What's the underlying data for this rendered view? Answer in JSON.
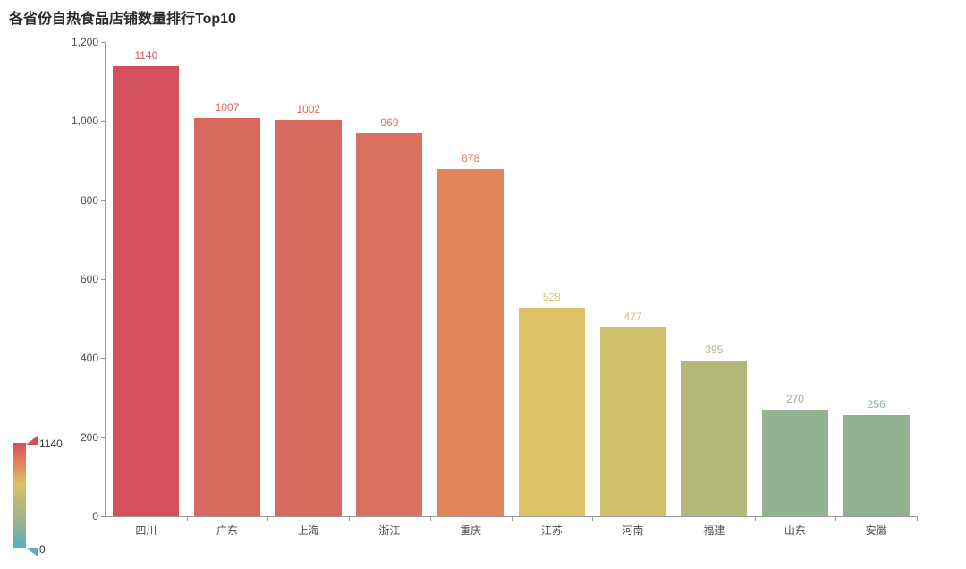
{
  "chart_data": {
    "type": "bar",
    "title": "各省份自热食品店铺数量排行Top10",
    "categories": [
      "四川",
      "广东",
      "上海",
      "浙江",
      "重庆",
      "江苏",
      "河南",
      "福建",
      "山东",
      "安徽"
    ],
    "values": [
      1140,
      1007,
      1002,
      969,
      878,
      528,
      477,
      395,
      270,
      256
    ],
    "bar_colors": [
      "#d4505c",
      "#d8675e",
      "#d9685e",
      "#d97060",
      "#e2855b",
      "#ddc167",
      "#d1c06a",
      "#b3b878",
      "#92b38f",
      "#90b290"
    ],
    "value_labels": [
      "1140",
      "1007",
      "1002",
      "969",
      "878",
      "528",
      "477",
      "395",
      "270",
      "256"
    ],
    "xlabel": "",
    "ylabel": "",
    "ylim": [
      0,
      1200
    ],
    "y_ticks": [
      "0",
      "200",
      "400",
      "600",
      "800",
      "1,000",
      "1,200"
    ],
    "grid": false,
    "legend_position": "bottom-left",
    "visual_map": {
      "max_label": "1140",
      "min_label": "0",
      "gradient_bottom_to_top": [
        "#58b0c0",
        "#90b290",
        "#b3b878",
        "#ddc167",
        "#e2855b",
        "#d4505c"
      ],
      "handle_top_color": "#d4505c",
      "handle_bottom_color": "#58b0c0"
    }
  }
}
